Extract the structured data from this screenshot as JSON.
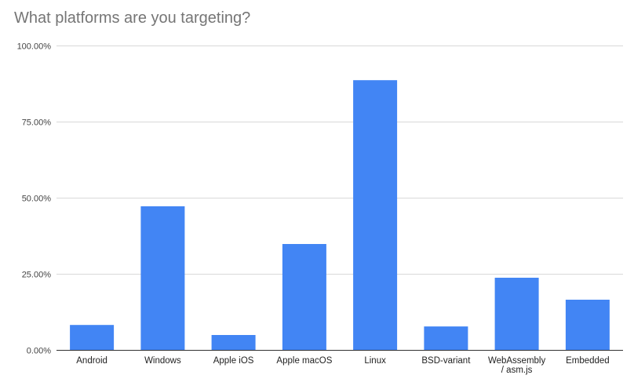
{
  "chart_data": {
    "type": "bar",
    "title": "What platforms are you targeting?",
    "xlabel": "",
    "ylabel": "",
    "ylim": [
      0,
      100
    ],
    "yticks": [
      0,
      25,
      50,
      75,
      100
    ],
    "ytick_labels": [
      "0.00%",
      "25.00%",
      "50.00%",
      "75.00%",
      "100.00%"
    ],
    "grid": true,
    "legend": "none",
    "bar_color": "#4285f4",
    "categories": [
      [
        "Android"
      ],
      [
        "Windows"
      ],
      [
        "Apple iOS"
      ],
      [
        "Apple macOS"
      ],
      [
        "Linux"
      ],
      [
        "BSD-variant"
      ],
      [
        "WebAssembly",
        "/ asm.js"
      ],
      [
        "Embedded"
      ]
    ],
    "values": [
      8.2,
      47.2,
      4.9,
      34.8,
      88.6,
      7.7,
      23.7,
      16.5
    ]
  }
}
